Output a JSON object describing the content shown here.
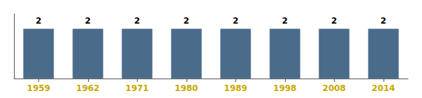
{
  "chart_data": {
    "type": "bar",
    "categories": [
      "1959",
      "1962",
      "1971",
      "1980",
      "1989",
      "1998",
      "2008",
      "2014"
    ],
    "values": [
      2,
      2,
      2,
      2,
      2,
      2,
      2,
      2
    ],
    "color": "#4a6b8a",
    "ylim": [
      0,
      2.6
    ],
    "grid": false,
    "data_labels": true,
    "tick_labels": "x"
  }
}
